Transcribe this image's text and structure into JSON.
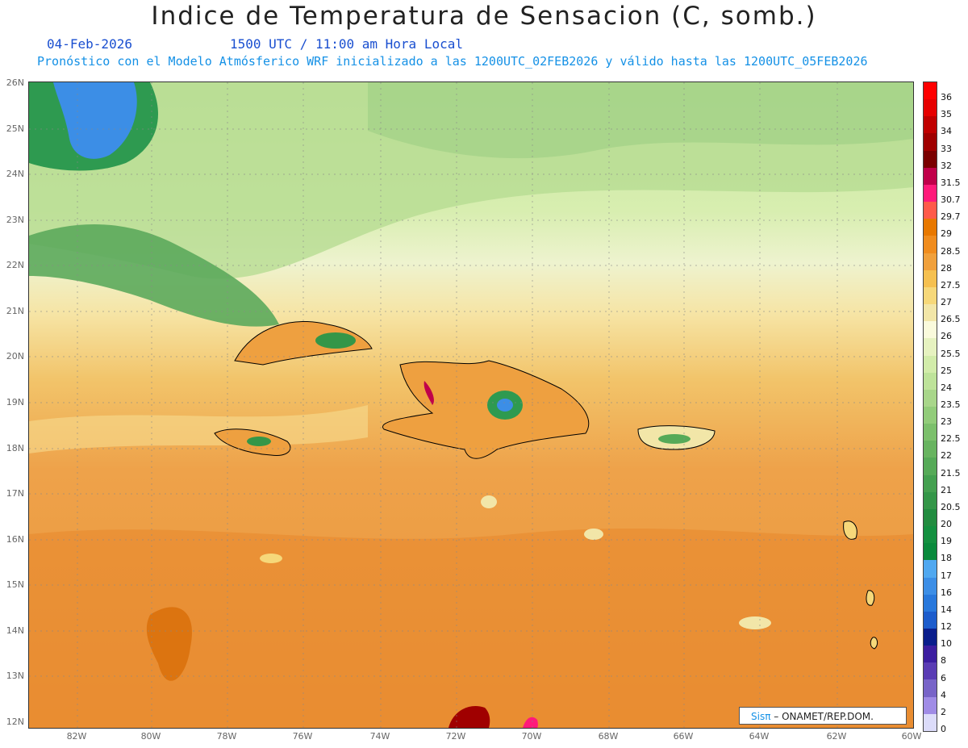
{
  "header": {
    "title": "Indice de Temperatura de Sensacion (C, somb.)",
    "date": "04-Feb-2026",
    "time": "1500 UTC / 11:00 am Hora Local",
    "model_line": "Pronóstico con el Modelo Atmósferico WRF inicializado a las 1200UTC_02FEB2026 y válido hasta las  1200UTC_05FEB2026"
  },
  "axes": {
    "lat_labels": [
      "26N",
      "25N",
      "24N",
      "23N",
      "22N",
      "21N",
      "20N",
      "19N",
      "18N",
      "17N",
      "16N",
      "15N",
      "14N",
      "13N",
      "12N"
    ],
    "lon_labels": [
      "82W",
      "80W",
      "78W",
      "76W",
      "74W",
      "72W",
      "70W",
      "68W",
      "66W",
      "64W",
      "62W",
      "60W"
    ]
  },
  "colorbar": {
    "labels": [
      "36",
      "35",
      "34",
      "33",
      "32",
      "31.5",
      "30.7",
      "29.7",
      "29",
      "28.5",
      "28",
      "27.5",
      "27",
      "26.5",
      "26",
      "25.5",
      "25",
      "24",
      "23.5",
      "23",
      "22.5",
      "22",
      "21.5",
      "21",
      "20.5",
      "20",
      "19",
      "18",
      "17",
      "16",
      "14",
      "12",
      "10",
      "8",
      "6",
      "4",
      "2",
      "0"
    ],
    "colors": [
      "#ff0000",
      "#e60000",
      "#c00000",
      "#a00000",
      "#7a0000",
      "#c0004a",
      "#ff1a7a",
      "#ff5a4a",
      "#e87800",
      "#f08c1e",
      "#f0a03c",
      "#f5c050",
      "#f6d87a",
      "#f2e6a8",
      "#fafadc",
      "#e6f2c0",
      "#d2ecaa",
      "#bee39a",
      "#a8d68a",
      "#92cc7a",
      "#7cc06c",
      "#68b460",
      "#56aa58",
      "#44a050",
      "#349648",
      "#228c40",
      "#149040",
      "#0a8a3c",
      "#50a8f0",
      "#3c8ee6",
      "#2878dc",
      "#1c5ccc",
      "#0a1e8c",
      "#3c1ea0",
      "#5a3cb4",
      "#7864c8",
      "#a08ce6",
      "#dcdcfa"
    ]
  },
  "credit": {
    "sis": "Sisπ",
    "org": "– ONAMET/REP.DOM."
  }
}
